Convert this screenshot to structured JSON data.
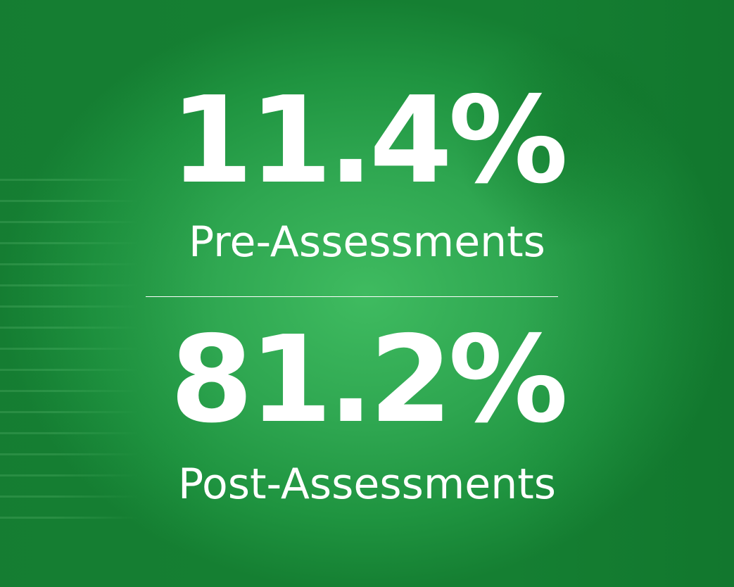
{
  "colors": {
    "background": "#2ea650",
    "text": "#ffffff"
  },
  "stats": [
    {
      "value": "11.4%",
      "label": "Pre-Assessments"
    },
    {
      "value": "81.2%",
      "label": "Post-Assessments"
    }
  ]
}
